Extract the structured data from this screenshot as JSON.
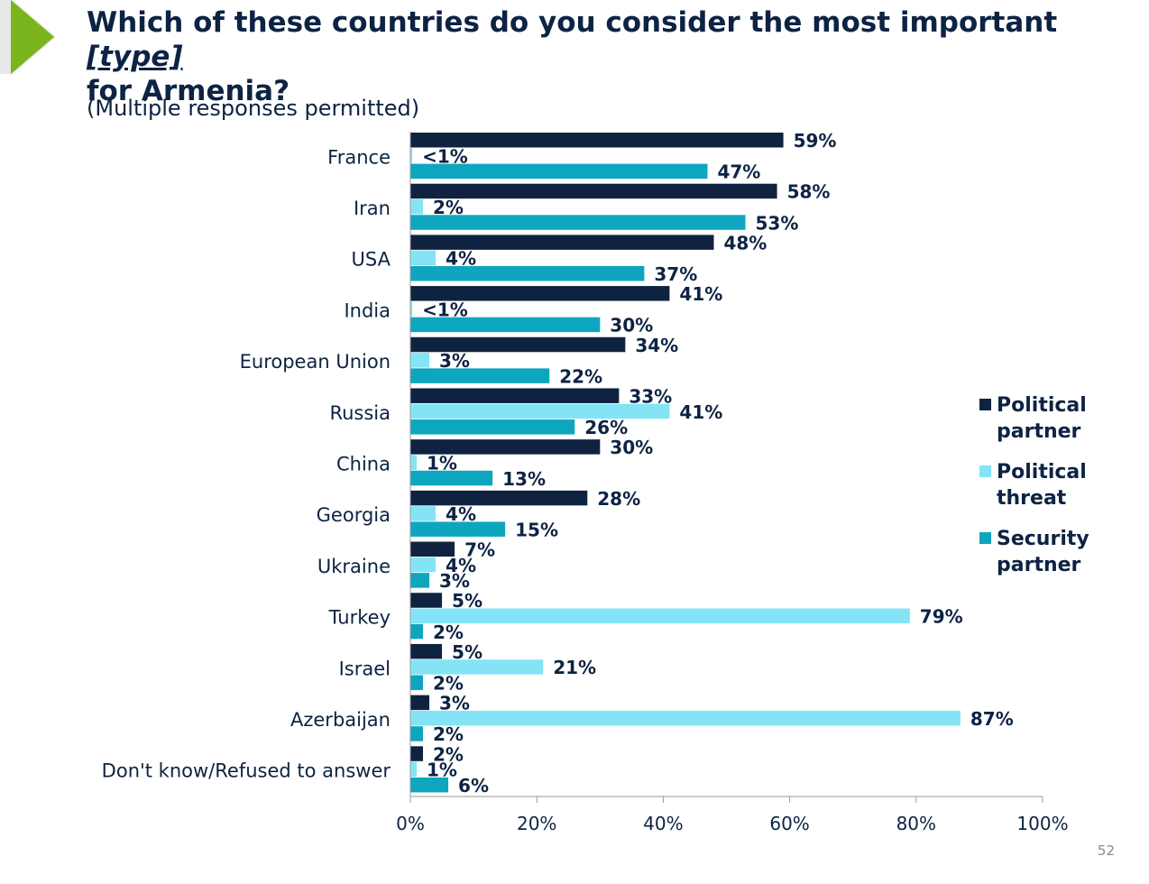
{
  "slide": {
    "title_part1": "Which of these countries do you consider the most important ",
    "title_type": "[type]",
    "title_part2": "for Armenia?",
    "subtitle": "(Multiple responses permitted)",
    "page_number": "52",
    "colors": {
      "accent_arrow": "#7ab51d"
    }
  },
  "chart_data": {
    "type": "bar",
    "orientation": "horizontal",
    "categories": [
      "France",
      "Iran",
      "USA",
      "India",
      "European Union",
      "Russia",
      "China",
      "Georgia",
      "Ukraine",
      "Turkey",
      "Israel",
      "Azerbaijan",
      "Don't know/Refused to answer"
    ],
    "series": [
      {
        "name": "Political partner",
        "color": "#0f2341",
        "values": [
          59,
          58,
          48,
          41,
          34,
          33,
          30,
          28,
          7,
          5,
          5,
          3,
          2
        ],
        "labels": [
          "59%",
          "58%",
          "48%",
          "41%",
          "34%",
          "33%",
          "30%",
          "28%",
          "7%",
          "5%",
          "5%",
          "3%",
          "2%"
        ]
      },
      {
        "name": "Political threat",
        "color": "#84e4f6",
        "values": [
          0.3,
          2,
          4,
          0.3,
          3,
          41,
          1,
          4,
          4,
          79,
          21,
          87,
          1
        ],
        "labels": [
          "<1%",
          "2%",
          "4%",
          "<1%",
          "3%",
          "41%",
          "1%",
          "4%",
          "4%",
          "79%",
          "21%",
          "87%",
          "1%"
        ]
      },
      {
        "name": "Security partner",
        "color": "#0ea6bf",
        "values": [
          47,
          53,
          37,
          30,
          22,
          26,
          13,
          15,
          3,
          2,
          2,
          2,
          6
        ],
        "labels": [
          "47%",
          "53%",
          "37%",
          "30%",
          "22%",
          "26%",
          "13%",
          "15%",
          "3%",
          "2%",
          "2%",
          "2%",
          "6%"
        ]
      }
    ],
    "xlim": [
      0,
      100
    ],
    "xticks": [
      "0%",
      "20%",
      "40%",
      "60%",
      "80%",
      "100%"
    ],
    "legend": [
      {
        "line1": "Political",
        "line2": "partner"
      },
      {
        "line1": "Political",
        "line2": "threat"
      },
      {
        "line1": "Security",
        "line2": "partner"
      }
    ],
    "legend_position": "right",
    "grid": false
  }
}
